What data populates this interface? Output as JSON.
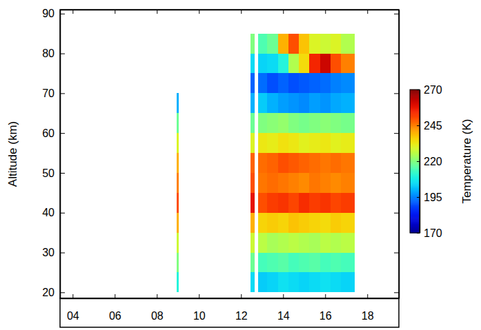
{
  "chart_data": {
    "type": "heatmap",
    "y_label": "Altitude (km)",
    "xlim": [
      3.4,
      19.5
    ],
    "xticks": [
      {
        "value": 4,
        "label": "04"
      },
      {
        "value": 6,
        "label": "06"
      },
      {
        "value": 8,
        "label": "08"
      },
      {
        "value": 10,
        "label": "10"
      },
      {
        "value": 12,
        "label": "12"
      },
      {
        "value": 14,
        "label": "14"
      },
      {
        "value": 16,
        "label": "16"
      },
      {
        "value": 18,
        "label": "18"
      }
    ],
    "ylim": [
      18.5,
      91
    ],
    "yticks": [
      20,
      30,
      40,
      50,
      60,
      70,
      80,
      90
    ],
    "y_edges": [
      20,
      25,
      30,
      35,
      40,
      45,
      50,
      55,
      60,
      65,
      70,
      75,
      80,
      85,
      90
    ],
    "columns": [
      {
        "x0": 8.95,
        "x1": 9.05,
        "values": [
          210,
          220,
          228,
          240,
          250,
          245,
          240,
          230,
          218,
          200,
          null,
          null,
          null,
          null
        ]
      },
      {
        "x0": 12.45,
        "x1": 12.65,
        "values": [
          205,
          218,
          228,
          240,
          258,
          250,
          248,
          230,
          218,
          200,
          192,
          205,
          220,
          null
        ]
      },
      {
        "x0": 12.8,
        "x1": 13.25,
        "values": [
          203,
          214,
          226,
          236,
          250,
          246,
          247,
          233,
          220,
          203,
          193,
          204,
          215,
          null
        ]
      },
      {
        "x0": 13.25,
        "x1": 13.75,
        "values": [
          204,
          215,
          224,
          237,
          252,
          247,
          248,
          232,
          221,
          200,
          190,
          205,
          218,
          null
        ]
      },
      {
        "x0": 13.75,
        "x1": 14.25,
        "values": [
          206,
          216,
          225,
          236,
          253,
          246,
          250,
          234,
          222,
          198,
          192,
          210,
          240,
          null
        ]
      },
      {
        "x0": 14.25,
        "x1": 14.75,
        "values": [
          205,
          214,
          226,
          238,
          251,
          245,
          249,
          233,
          220,
          197,
          190,
          225,
          250,
          null
        ]
      },
      {
        "x0": 14.75,
        "x1": 15.25,
        "values": [
          204,
          215,
          225,
          237,
          254,
          244,
          248,
          231,
          219,
          196,
          191,
          235,
          238,
          null
        ]
      },
      {
        "x0": 15.25,
        "x1": 15.75,
        "values": [
          205,
          216,
          224,
          236,
          252,
          246,
          247,
          232,
          220,
          198,
          192,
          255,
          230,
          null
        ]
      },
      {
        "x0": 15.75,
        "x1": 16.25,
        "values": [
          206,
          214,
          226,
          235,
          253,
          245,
          246,
          233,
          221,
          197,
          193,
          262,
          228,
          null
        ]
      },
      {
        "x0": 16.25,
        "x1": 16.75,
        "values": [
          205,
          215,
          225,
          237,
          251,
          244,
          247,
          231,
          220,
          199,
          195,
          250,
          230,
          null
        ]
      },
      {
        "x0": 16.75,
        "x1": 17.4,
        "values": [
          204,
          214,
          226,
          236,
          252,
          245,
          246,
          232,
          219,
          200,
          196,
          245,
          225,
          null
        ]
      }
    ],
    "colorbar": {
      "label": "Temperature (K)",
      "range": [
        170,
        270
      ],
      "ticks": [
        170,
        195,
        220,
        245,
        270
      ]
    }
  }
}
